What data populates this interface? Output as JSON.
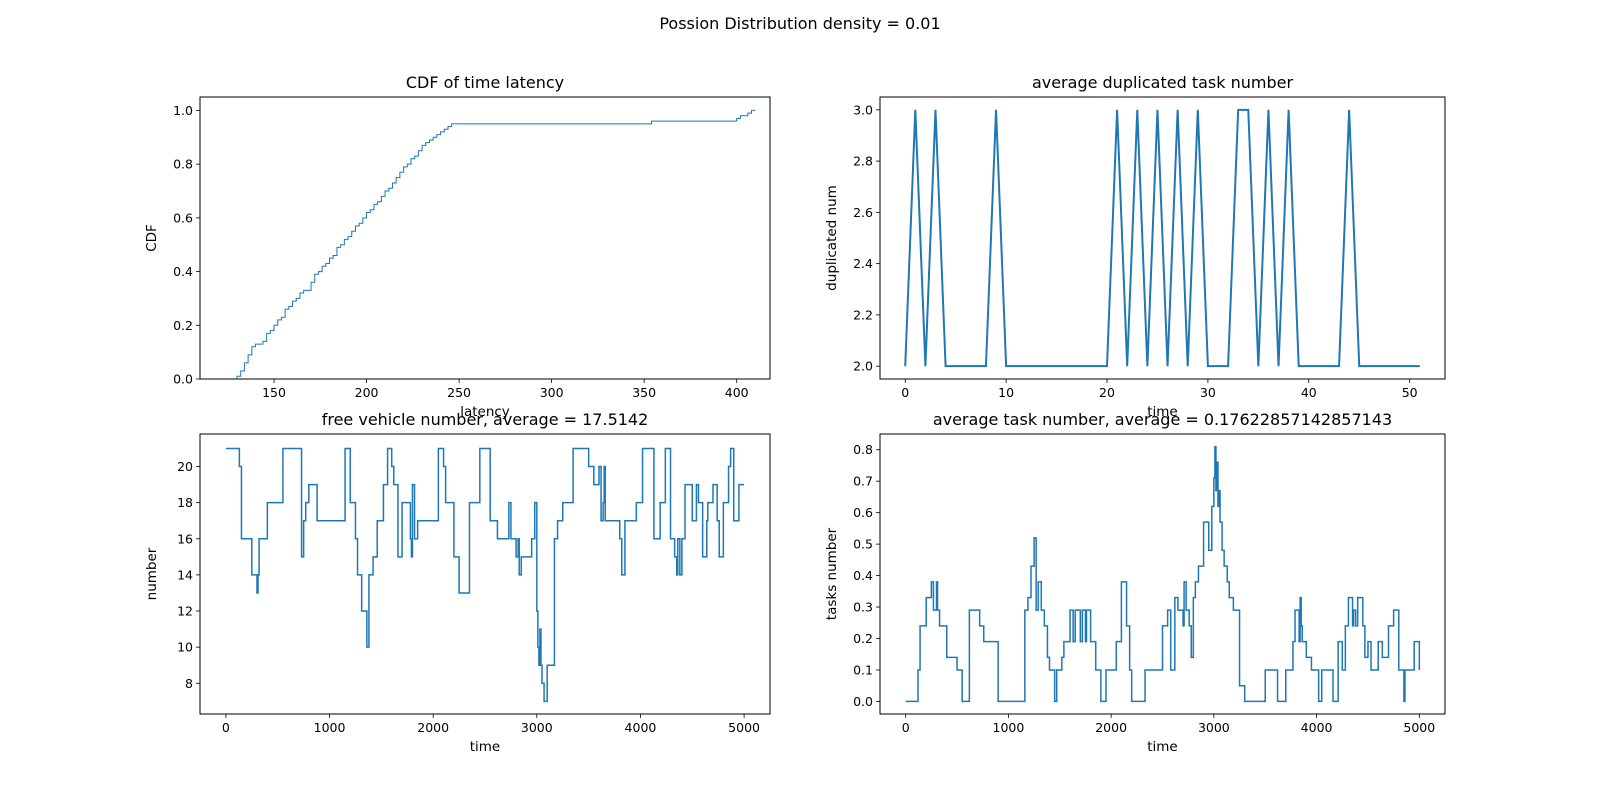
{
  "figure_title": "Possion Distribution density = 0.01",
  "chart_data": [
    {
      "id": "cdf",
      "type": "line",
      "step": true,
      "title": "CDF of time latency",
      "xlabel": "latency",
      "ylabel": "CDF",
      "xlim": [
        110,
        418
      ],
      "ylim": [
        0,
        1.05
      ],
      "xticks": [
        150,
        200,
        250,
        300,
        350,
        400
      ],
      "yticks": [
        0.0,
        0.2,
        0.4,
        0.6,
        0.8,
        1.0
      ],
      "yticklabels": [
        "0.0",
        "0.2",
        "0.4",
        "0.6",
        "0.8",
        "1.0"
      ],
      "line_width": 1,
      "series": [
        {
          "x": [
            126,
            130,
            132,
            134,
            136,
            138,
            140,
            142,
            144,
            146,
            148,
            150,
            152,
            154,
            156,
            158,
            160,
            162,
            164,
            166,
            168,
            170,
            172,
            174,
            176,
            178,
            180,
            182,
            184,
            186,
            188,
            190,
            192,
            194,
            196,
            198,
            200,
            202,
            204,
            206,
            208,
            210,
            212,
            214,
            216,
            218,
            220,
            222,
            224,
            226,
            228,
            230,
            232,
            234,
            236,
            238,
            240,
            242,
            244,
            246,
            248,
            250,
            300,
            352,
            354,
            356,
            400,
            402,
            404,
            406,
            408,
            410
          ],
          "y": [
            0.0,
            0.01,
            0.03,
            0.06,
            0.09,
            0.12,
            0.13,
            0.13,
            0.14,
            0.17,
            0.18,
            0.2,
            0.22,
            0.23,
            0.26,
            0.27,
            0.29,
            0.3,
            0.32,
            0.33,
            0.33,
            0.36,
            0.39,
            0.4,
            0.42,
            0.43,
            0.45,
            0.46,
            0.49,
            0.5,
            0.52,
            0.53,
            0.55,
            0.57,
            0.58,
            0.6,
            0.62,
            0.63,
            0.65,
            0.66,
            0.68,
            0.7,
            0.71,
            0.73,
            0.75,
            0.77,
            0.79,
            0.8,
            0.82,
            0.83,
            0.85,
            0.87,
            0.88,
            0.89,
            0.9,
            0.91,
            0.92,
            0.93,
            0.94,
            0.95,
            0.95,
            0.95,
            0.95,
            0.95,
            0.96,
            0.96,
            0.97,
            0.98,
            0.98,
            0.99,
            1.0,
            1.0
          ]
        }
      ]
    },
    {
      "id": "dup",
      "type": "line",
      "title": "average duplicated task number",
      "xlabel": "time",
      "ylabel": "duplicated num",
      "xlim": [
        -2.5,
        53.5
      ],
      "ylim": [
        1.95,
        3.05
      ],
      "xticks": [
        0,
        10,
        20,
        30,
        40,
        50
      ],
      "yticks": [
        2.0,
        2.2,
        2.4,
        2.6,
        2.8,
        3.0
      ],
      "yticklabels": [
        "2.0",
        "2.2",
        "2.4",
        "2.6",
        "2.8",
        "3.0"
      ],
      "line_width": 2,
      "series": [
        {
          "x": [
            0,
            1,
            2,
            3,
            4,
            5,
            6,
            7,
            8,
            9,
            10,
            11,
            12,
            13,
            14,
            15,
            16,
            17,
            18,
            19,
            20,
            21,
            22,
            23,
            24,
            25,
            26,
            27,
            28,
            29,
            30,
            31,
            32,
            33,
            34,
            35,
            36,
            37,
            38,
            39,
            40,
            41,
            42,
            43,
            44,
            45,
            46,
            47,
            48,
            49,
            50,
            51
          ],
          "y": [
            2,
            3,
            2,
            3,
            2,
            2,
            2,
            2,
            2,
            3,
            2,
            2,
            2,
            2,
            2,
            2,
            2,
            2,
            2,
            2,
            2,
            3,
            2,
            3,
            2,
            3,
            2,
            3,
            2,
            3,
            2,
            2,
            2,
            3,
            3,
            2,
            3,
            2,
            3,
            2,
            2,
            2,
            2,
            2,
            3,
            2,
            2,
            2,
            2,
            2,
            2,
            2
          ]
        }
      ]
    },
    {
      "id": "free",
      "type": "line",
      "step": true,
      "title": "free vehicle number, average = 17.5142",
      "xlabel": "time",
      "ylabel": "number",
      "xlim": [
        -250,
        5250
      ],
      "ylim": [
        6.3,
        21.8
      ],
      "xticks": [
        0,
        1000,
        2000,
        3000,
        4000,
        5000
      ],
      "yticks": [
        8,
        10,
        12,
        14,
        16,
        18,
        20
      ],
      "yticklabels": [
        "8",
        "10",
        "12",
        "14",
        "16",
        "18",
        "20"
      ],
      "line_width": 1.5,
      "series": [
        {
          "x": [
            0,
            130,
            150,
            180,
            250,
            300,
            310,
            320,
            350,
            400,
            430,
            550,
            640,
            730,
            750,
            770,
            800,
            880,
            1150,
            1200,
            1230,
            1250,
            1270,
            1310,
            1340,
            1360,
            1380,
            1420,
            1460,
            1520,
            1560,
            1600,
            1620,
            1660,
            1700,
            1780,
            1790,
            1800,
            1820,
            1850,
            1920,
            2050,
            2100,
            2120,
            2140,
            2150,
            2200,
            2250,
            2350,
            2450,
            2550,
            2600,
            2620,
            2680,
            2730,
            2750,
            2790,
            2800,
            2820,
            2830,
            2850,
            2950,
            2980,
            3000,
            3010,
            3020,
            3030,
            3040,
            3050,
            3070,
            3100,
            3170,
            3200,
            3250,
            3350,
            3500,
            3550,
            3600,
            3620,
            3640,
            3650,
            3660,
            3800,
            3820,
            3850,
            3940,
            3960,
            3990,
            4020,
            4130,
            4190,
            4240,
            4290,
            4330,
            4350,
            4360,
            4380,
            4400,
            4430,
            4500,
            4540,
            4560,
            4600,
            4640,
            4650,
            4700,
            4740,
            4760,
            4800,
            4850,
            4870,
            4900,
            4950,
            5000
          ],
          "y": [
            21,
            20,
            16,
            16,
            14,
            13,
            14,
            16,
            16,
            18,
            18,
            21,
            21,
            15,
            17,
            18,
            19,
            17,
            21,
            18,
            18,
            16,
            14,
            12,
            12,
            10,
            14,
            15,
            17,
            19,
            21,
            20,
            19,
            15,
            18,
            16,
            15,
            19,
            16,
            17,
            17,
            21,
            20,
            18,
            18,
            18,
            15,
            13,
            18,
            21,
            17,
            17,
            16,
            16,
            18,
            16,
            16,
            15,
            16,
            14,
            15,
            16,
            18,
            12,
            10,
            9,
            11,
            9,
            8,
            7,
            9,
            16,
            17,
            18,
            21,
            20,
            19,
            20,
            17,
            18,
            20,
            17,
            16,
            14,
            17,
            17,
            18,
            18,
            21,
            16,
            18,
            21,
            16,
            15,
            14,
            16,
            14,
            16,
            19,
            17,
            19,
            18,
            15,
            17,
            18,
            19,
            17,
            15,
            18,
            20,
            21,
            17,
            19,
            19
          ]
        }
      ]
    },
    {
      "id": "tasks",
      "type": "line",
      "step": true,
      "title": "average task number, average = 0.17622857142857143",
      "xlabel": "time",
      "ylabel": "tasks number",
      "xlim": [
        -250,
        5250
      ],
      "ylim": [
        -0.04,
        0.85
      ],
      "xticks": [
        0,
        1000,
        2000,
        3000,
        4000,
        5000
      ],
      "yticks": [
        0.0,
        0.1,
        0.2,
        0.3,
        0.4,
        0.5,
        0.6,
        0.7,
        0.8
      ],
      "yticklabels": [
        "0.0",
        "0.1",
        "0.2",
        "0.3",
        "0.4",
        "0.5",
        "0.6",
        "0.7",
        "0.8"
      ],
      "line_width": 1.5,
      "series": [
        {
          "x": [
            0,
            100,
            120,
            140,
            170,
            190,
            200,
            240,
            250,
            270,
            300,
            310,
            330,
            370,
            400,
            410,
            500,
            550,
            620,
            700,
            720,
            730,
            760,
            800,
            900,
            1000,
            1160,
            1190,
            1220,
            1250,
            1270,
            1290,
            1320,
            1350,
            1380,
            1400,
            1450,
            1470,
            1500,
            1520,
            1540,
            1600,
            1630,
            1650,
            1700,
            1720,
            1750,
            1760,
            1800,
            1820,
            1850,
            1900,
            1950,
            2000,
            2050,
            2100,
            2150,
            2180,
            2200,
            2250,
            2330,
            2500,
            2520,
            2550,
            2580,
            2620,
            2650,
            2700,
            2710,
            2730,
            2760,
            2780,
            2800,
            2820,
            2850,
            2900,
            2950,
            2980,
            3000,
            3010,
            3020,
            3030,
            3040,
            3050,
            3060,
            3080,
            3100,
            3130,
            3150,
            3190,
            3200,
            3250,
            3300,
            3350,
            3400,
            3500,
            3570,
            3620,
            3700,
            3770,
            3790,
            3830,
            3840,
            3850,
            3860,
            3900,
            3950,
            4000,
            4020,
            4050,
            4100,
            4160,
            4210,
            4250,
            4280,
            4310,
            4350,
            4360,
            4380,
            4400,
            4450,
            4470,
            4500,
            4530,
            4550,
            4600,
            4640,
            4700,
            4750,
            4800,
            4830,
            4850,
            4860,
            4900,
            4950,
            5000
          ],
          "y": [
            0,
            0,
            0.1,
            0.24,
            0.24,
            0.24,
            0.33,
            0.33,
            0.38,
            0.29,
            0.38,
            0.29,
            0.24,
            0.24,
            0.14,
            0.14,
            0.1,
            0,
            0.29,
            0.29,
            0.24,
            0.24,
            0.19,
            0.19,
            0,
            0,
            0.29,
            0.33,
            0.43,
            0.52,
            0.29,
            0.38,
            0.29,
            0.24,
            0.14,
            0.1,
            0,
            0.1,
            0.1,
            0.14,
            0.19,
            0.29,
            0.19,
            0.29,
            0.19,
            0.29,
            0.19,
            0.29,
            0.19,
            0.19,
            0.1,
            0,
            0.1,
            0.1,
            0.19,
            0.38,
            0.24,
            0.1,
            0,
            0,
            0.1,
            0.24,
            0.24,
            0.29,
            0.1,
            0.33,
            0.29,
            0.24,
            0.38,
            0.29,
            0.24,
            0.14,
            0.33,
            0.38,
            0.43,
            0.57,
            0.48,
            0.62,
            0.71,
            0.81,
            0.67,
            0.76,
            0.62,
            0.67,
            0.57,
            0.48,
            0.43,
            0.38,
            0.33,
            0.29,
            0.29,
            0.05,
            0,
            0,
            0,
            0.1,
            0.1,
            0,
            0.1,
            0.19,
            0.29,
            0.19,
            0.33,
            0.24,
            0.19,
            0.14,
            0.1,
            0.1,
            0,
            0.1,
            0.1,
            0,
            0.19,
            0.1,
            0.24,
            0.33,
            0.24,
            0.29,
            0.24,
            0.33,
            0.24,
            0.14,
            0.19,
            0.1,
            0.1,
            0.19,
            0.14,
            0.24,
            0.29,
            0.1,
            0.1,
            0,
            0.1,
            0.1,
            0.19,
            0.1
          ]
        }
      ]
    }
  ]
}
